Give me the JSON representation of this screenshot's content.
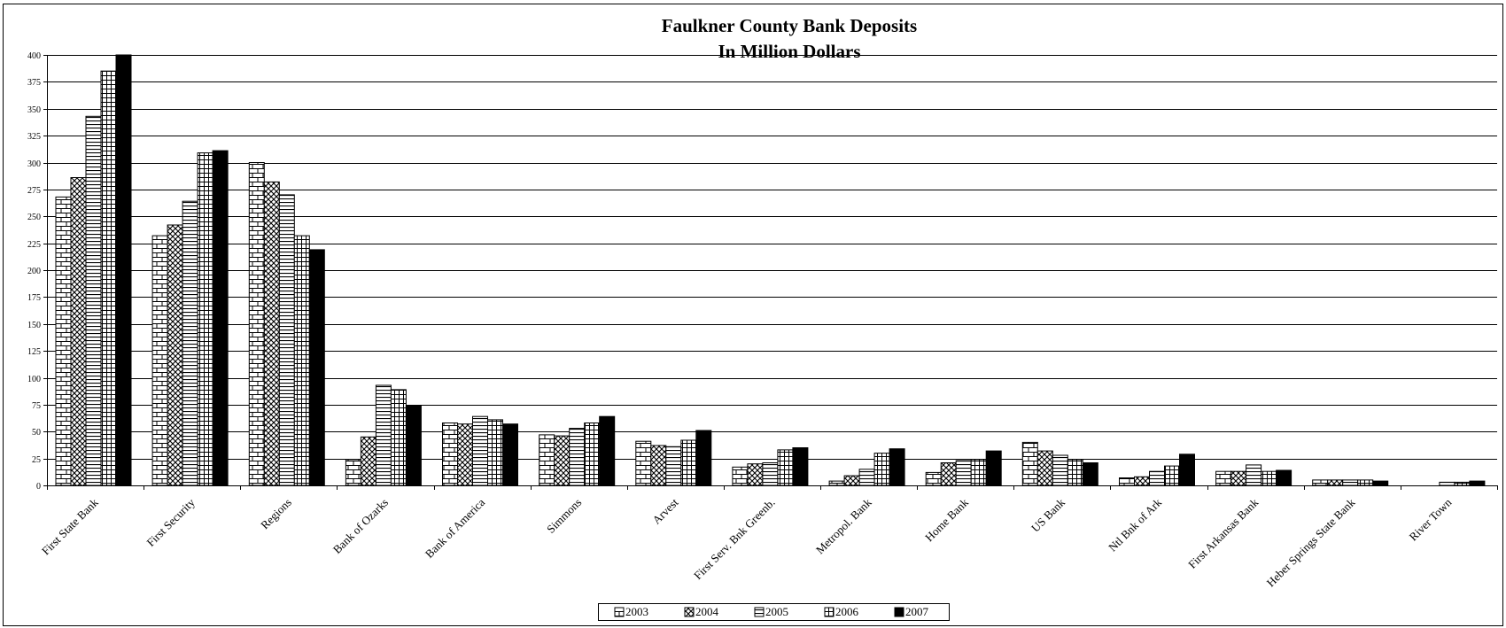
{
  "chart_data": {
    "type": "bar",
    "title": "Faulkner County Bank Deposits",
    "subtitle": "In Million Dollars",
    "xlabel": "",
    "ylabel": "",
    "ylim": [
      0,
      400
    ],
    "ytick_step": 25,
    "grid": true,
    "legend_position": "bottom",
    "categories": [
      "First State Bank",
      "First Security",
      "Regions",
      "Bank of Ozarks",
      "Bank of America",
      "Simmons",
      "Arvest",
      "First Serv. Bnk Greenb.",
      "Metropol. Bank",
      "Home Bank",
      "US Bank",
      "Ntl Bnk of Ark",
      "First Arkansas Bank",
      "Heber Springs State Bank",
      "River Town"
    ],
    "series": [
      {
        "name": "2003",
        "pattern": "bricks",
        "values": [
          268,
          232,
          300,
          24,
          58,
          47,
          41,
          17,
          4,
          12,
          40,
          7,
          13,
          5,
          0
        ]
      },
      {
        "name": "2004",
        "pattern": "crosshatch",
        "values": [
          286,
          242,
          282,
          45,
          57,
          46,
          37,
          20,
          9,
          21,
          32,
          8,
          13,
          5,
          0
        ]
      },
      {
        "name": "2005",
        "pattern": "hlines",
        "values": [
          343,
          264,
          270,
          93,
          64,
          53,
          36,
          21,
          15,
          23,
          28,
          13,
          19,
          5,
          3
        ]
      },
      {
        "name": "2006",
        "pattern": "grid",
        "values": [
          385,
          309,
          232,
          89,
          61,
          58,
          42,
          33,
          30,
          24,
          24,
          18,
          13,
          5,
          3
        ]
      },
      {
        "name": "2007",
        "pattern": "solid",
        "values": [
          400,
          311,
          219,
          74,
          57,
          64,
          51,
          35,
          34,
          32,
          21,
          29,
          14,
          4,
          4
        ]
      }
    ]
  }
}
